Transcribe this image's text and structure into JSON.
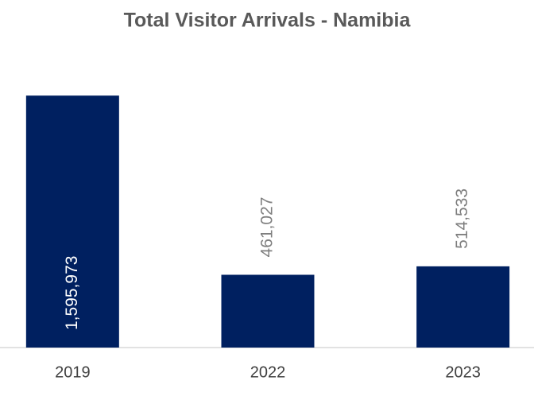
{
  "chart_data": {
    "type": "bar",
    "title": "Total Visitor Arrivals - Namibia",
    "categories": [
      "2019",
      "2022",
      "2023"
    ],
    "values": [
      1595973,
      461027,
      514533
    ],
    "value_labels": [
      "1,595,973",
      "461,027",
      "514,533"
    ],
    "color": "#002060",
    "ylim": [
      0,
      2000000
    ]
  }
}
